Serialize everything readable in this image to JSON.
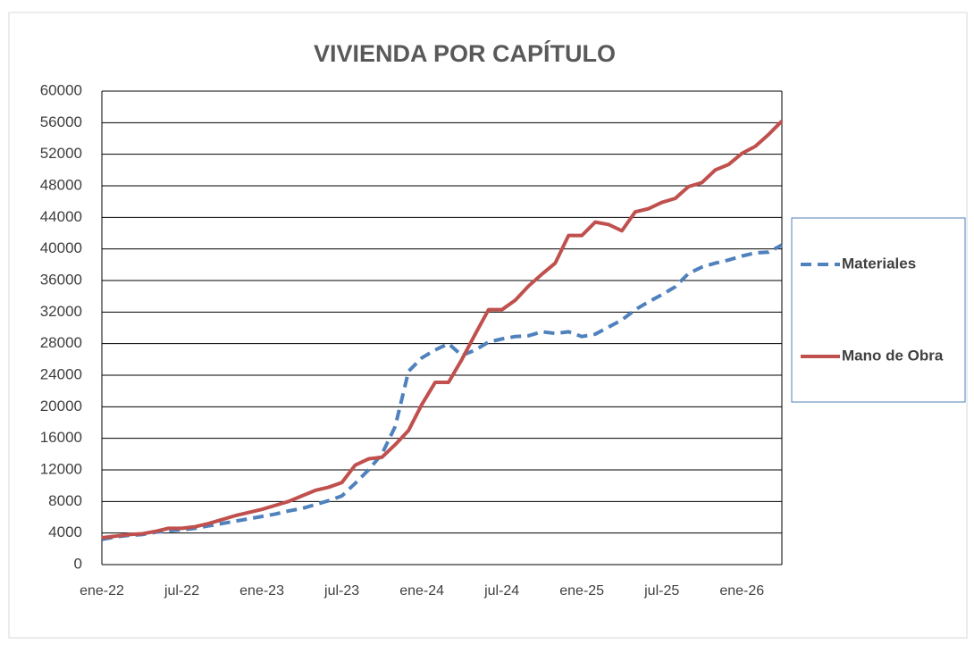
{
  "chart_data": {
    "type": "line",
    "title": "VIVIENDA POR CAPÍTULO",
    "categories": [
      "ene-22",
      null,
      null,
      null,
      null,
      null,
      "jul-22",
      null,
      null,
      null,
      null,
      null,
      "ene-23",
      null,
      null,
      null,
      null,
      null,
      "jul-23",
      null,
      null,
      null,
      null,
      null,
      "ene-24",
      null,
      null,
      null,
      null,
      null,
      "jul-24",
      null,
      null,
      null,
      null,
      null,
      "ene-25",
      null,
      null,
      null,
      null,
      null,
      "jul-25",
      null,
      null,
      null,
      null,
      null,
      "ene-26",
      null,
      null,
      null
    ],
    "series": [
      {
        "name": "Materiales",
        "color": "#4f81bd",
        "dashed": true,
        "values": [
          3200,
          3500,
          3700,
          3800,
          4100,
          4300,
          4400,
          4600,
          4900,
          5200,
          5500,
          5800,
          6100,
          6400,
          6800,
          7100,
          7600,
          8100,
          8700,
          10300,
          12000,
          14000,
          17500,
          24500,
          26200,
          27200,
          28000,
          26500,
          27200,
          28200,
          28600,
          28900,
          29000,
          29500,
          29300,
          29500,
          28900,
          29200,
          30100,
          31000,
          32300,
          33300,
          34200,
          35200,
          36900,
          37700,
          38200,
          38600,
          39100,
          39500,
          39600,
          40500
        ]
      },
      {
        "name": "Mano de Obra",
        "color": "#c0504d",
        "dashed": false,
        "values": [
          3400,
          3600,
          3800,
          3900,
          4200,
          4600,
          4600,
          4800,
          5200,
          5700,
          6200,
          6600,
          7000,
          7500,
          8000,
          8700,
          9400,
          9800,
          10400,
          12600,
          13400,
          13600,
          15200,
          17000,
          20300,
          23100,
          23100,
          26000,
          29200,
          32300,
          32300,
          33500,
          35300,
          36800,
          38200,
          41700,
          41700,
          43400,
          43100,
          42300,
          44700,
          45100,
          45900,
          46400,
          47900,
          48400,
          50000,
          50700,
          52100,
          53000,
          54500,
          56200
        ]
      }
    ],
    "ylim": [
      0,
      60000
    ],
    "yticks": [
      0,
      4000,
      8000,
      12000,
      16000,
      20000,
      24000,
      28000,
      32000,
      36000,
      40000,
      44000,
      48000,
      52000,
      56000,
      60000
    ],
    "grid": true,
    "legend": "right"
  }
}
